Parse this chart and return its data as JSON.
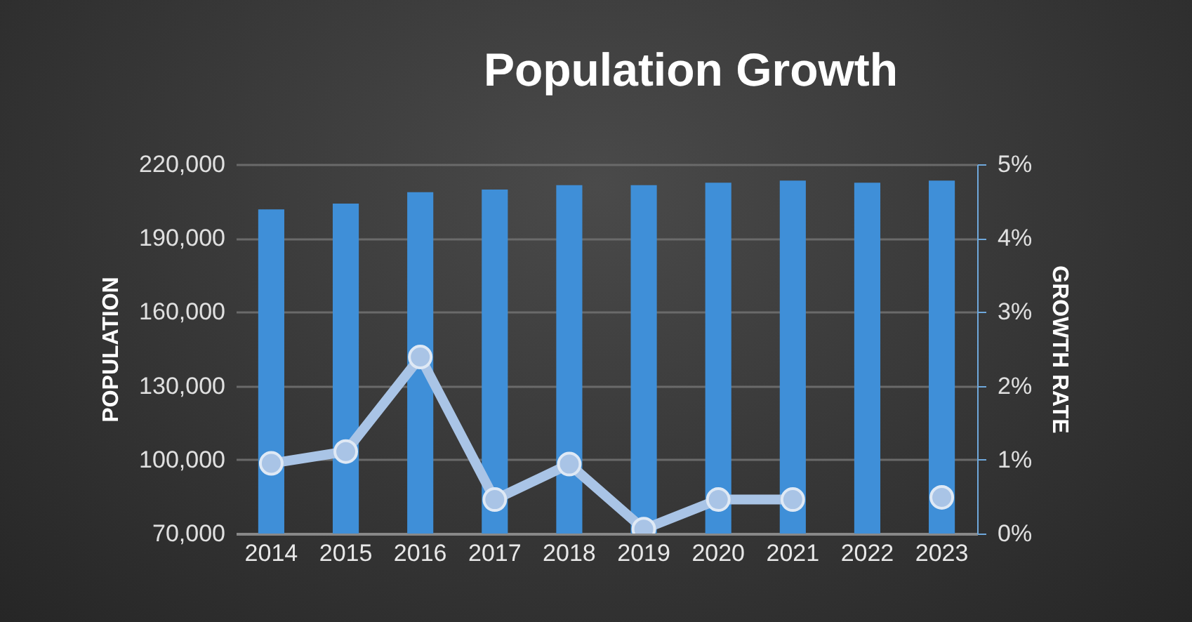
{
  "chart_data": {
    "type": "bar",
    "title": "Population Growth",
    "ylabel": "POPULATION",
    "y2label": "GROWTH RATE",
    "categories": [
      "2014",
      "2015",
      "2016",
      "2017",
      "2018",
      "2019",
      "2020",
      "2021",
      "2022",
      "2023"
    ],
    "series": [
      {
        "color": "#3f8fd8",
        "values": [
          201700,
          204000,
          208700,
          209700,
          211500,
          211500,
          212500,
          213400,
          212500,
          213400
        ]
      },
      {
        "type": "line",
        "axis": "y2",
        "color": "#a9c4e6",
        "marker": "circle",
        "values": [
          0.95,
          1.11,
          2.39,
          0.46,
          0.94,
          0.06,
          0.46,
          0.46,
          null,
          0.49
        ]
      }
    ],
    "ylim": [
      70000,
      220000
    ],
    "yticks": [
      {
        "value": 70000,
        "label": "70,000"
      },
      {
        "value": 100000,
        "label": "100,000"
      },
      {
        "value": 130000,
        "label": "130,000"
      },
      {
        "value": 160000,
        "label": "160,000"
      },
      {
        "value": 190000,
        "label": "190,000"
      },
      {
        "value": 220000,
        "label": "220,000"
      }
    ],
    "y2lim": [
      0,
      5
    ],
    "y2ticks": [
      {
        "value": 0,
        "label": "0%"
      },
      {
        "value": 1,
        "label": "1%"
      },
      {
        "value": 2,
        "label": "2%"
      },
      {
        "value": 3,
        "label": "3%"
      },
      {
        "value": 4,
        "label": "4%"
      },
      {
        "value": 5,
        "label": "5%"
      }
    ],
    "grid": "y"
  }
}
